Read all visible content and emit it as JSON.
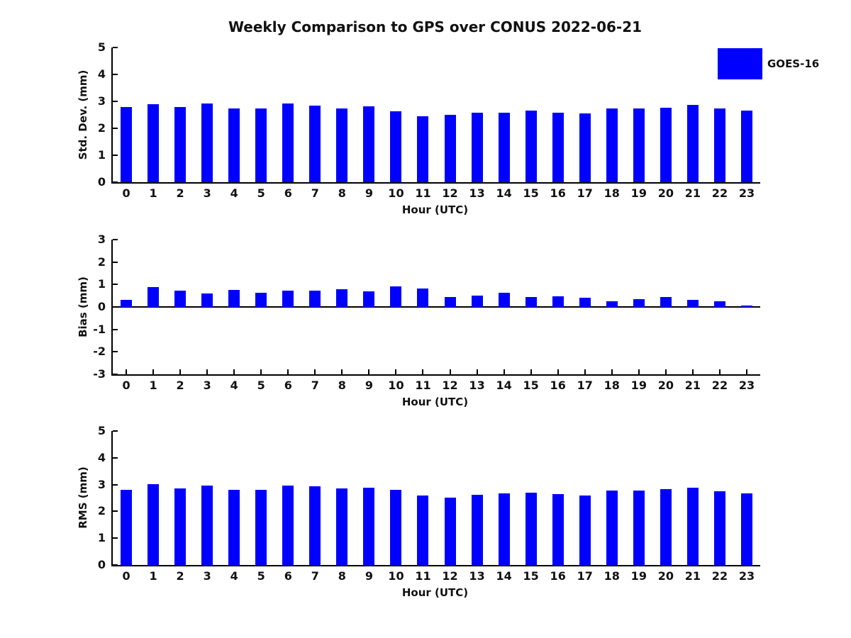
{
  "header": {
    "title": "Weekly Comparison to GPS over CONUS 2022-06-21"
  },
  "legend": {
    "label": "GOES-16",
    "color": "#0000FF",
    "position": "top-right"
  },
  "style": {
    "bar_color": "#0000FF",
    "axis_color": "#000000",
    "text_color": "#111111",
    "background_color": "#ffffff"
  },
  "chart_data": [
    {
      "type": "bar",
      "series_name": "GOES-16",
      "ylabel": "Std. Dev. (mm)",
      "xlabel": "Hour (UTC)",
      "ylim": [
        0,
        5
      ],
      "yticks": [
        0,
        1,
        2,
        3,
        4,
        5
      ],
      "grid": false,
      "categories": [
        "0",
        "1",
        "2",
        "3",
        "4",
        "5",
        "6",
        "7",
        "8",
        "9",
        "10",
        "11",
        "12",
        "13",
        "14",
        "15",
        "16",
        "17",
        "18",
        "19",
        "20",
        "21",
        "22",
        "23"
      ],
      "values": [
        2.78,
        2.9,
        2.79,
        2.92,
        2.73,
        2.74,
        2.91,
        2.85,
        2.75,
        2.82,
        2.63,
        2.46,
        2.49,
        2.58,
        2.59,
        2.65,
        2.57,
        2.54,
        2.74,
        2.74,
        2.77,
        2.87,
        2.74,
        2.66
      ]
    },
    {
      "type": "bar",
      "series_name": "GOES-16",
      "ylabel": "Bias (mm)",
      "xlabel": "Hour (UTC)",
      "ylim": [
        -3,
        3
      ],
      "yticks": [
        -3,
        -2,
        -1,
        0,
        1,
        2,
        3
      ],
      "grid": false,
      "categories": [
        "0",
        "1",
        "2",
        "3",
        "4",
        "5",
        "6",
        "7",
        "8",
        "9",
        "10",
        "11",
        "12",
        "13",
        "14",
        "15",
        "16",
        "17",
        "18",
        "19",
        "20",
        "21",
        "22",
        "23"
      ],
      "values": [
        0.31,
        0.88,
        0.73,
        0.61,
        0.76,
        0.64,
        0.72,
        0.74,
        0.79,
        0.7,
        0.93,
        0.81,
        0.45,
        0.49,
        0.63,
        0.45,
        0.48,
        0.41,
        0.26,
        0.36,
        0.45,
        0.31,
        0.24,
        0.07
      ]
    },
    {
      "type": "bar",
      "series_name": "GOES-16",
      "ylabel": "RMS (mm)",
      "xlabel": "Hour (UTC)",
      "ylim": [
        0,
        5
      ],
      "yticks": [
        0,
        1,
        2,
        3,
        4,
        5
      ],
      "grid": false,
      "categories": [
        "0",
        "1",
        "2",
        "3",
        "4",
        "5",
        "6",
        "7",
        "8",
        "9",
        "10",
        "11",
        "12",
        "13",
        "14",
        "15",
        "16",
        "17",
        "18",
        "19",
        "20",
        "21",
        "22",
        "23"
      ],
      "values": [
        2.8,
        3.01,
        2.87,
        2.97,
        2.81,
        2.81,
        2.96,
        2.94,
        2.86,
        2.89,
        2.81,
        2.58,
        2.52,
        2.63,
        2.66,
        2.71,
        2.64,
        2.6,
        2.77,
        2.77,
        2.82,
        2.89,
        2.74,
        2.66
      ]
    }
  ]
}
